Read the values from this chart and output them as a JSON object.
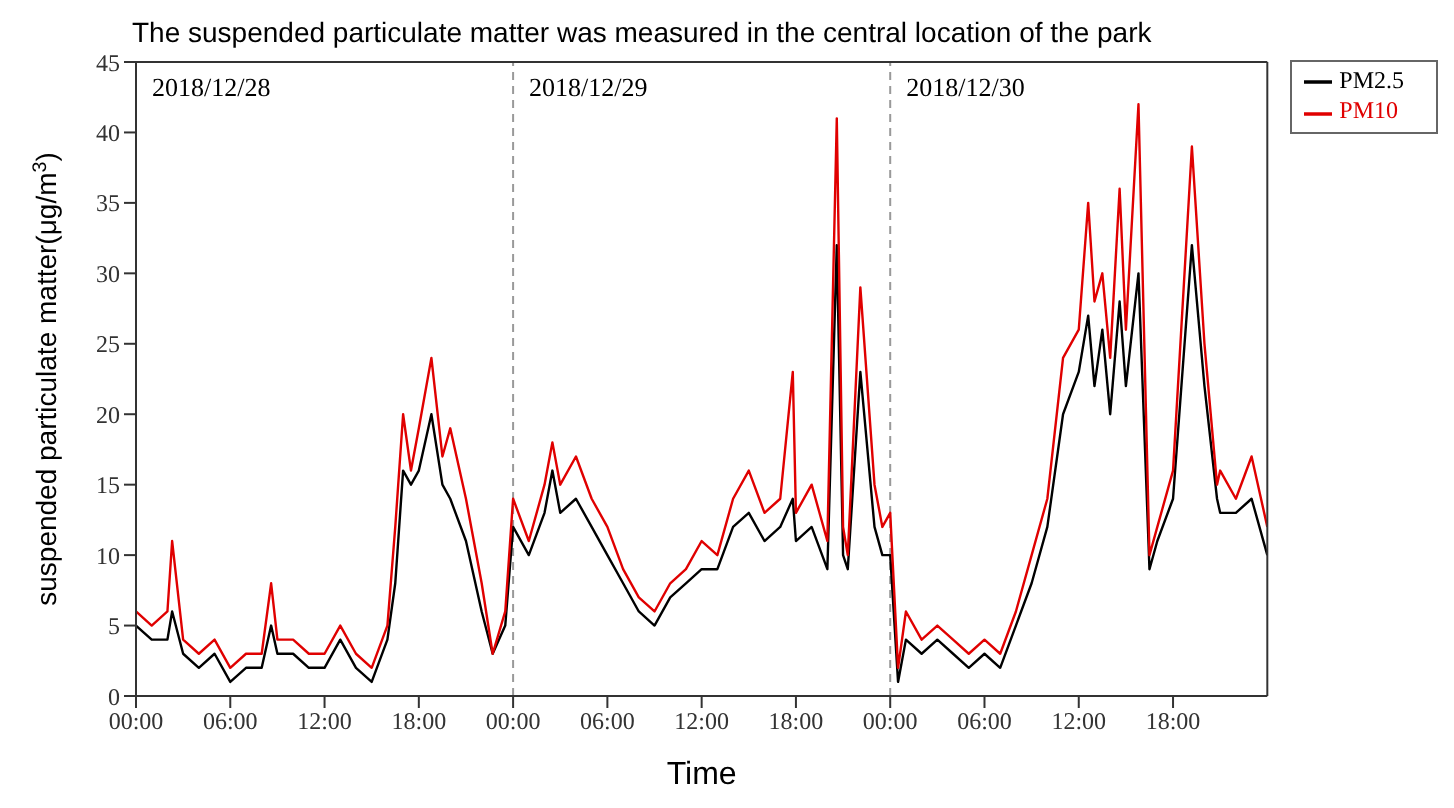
{
  "chart_data": {
    "type": "line",
    "title": "The suspended particulate matter was measured in the central location of the park",
    "xlabel": "Time",
    "ylabel": "suspended particulate matter(μg/m$^{3}$)",
    "x": [
      "2018-12-28T00:00",
      "2018-12-28T01:00",
      "2018-12-28T02:00",
      "2018-12-28T02:18",
      "2018-12-28T03:00",
      "2018-12-28T04:00",
      "2018-12-28T05:00",
      "2018-12-28T06:00",
      "2018-12-28T07:00",
      "2018-12-28T08:00",
      "2018-12-28T08:36",
      "2018-12-28T09:00",
      "2018-12-28T10:00",
      "2018-12-28T11:00",
      "2018-12-28T12:00",
      "2018-12-28T13:00",
      "2018-12-28T14:00",
      "2018-12-28T15:00",
      "2018-12-28T16:00",
      "2018-12-28T16:30",
      "2018-12-28T17:00",
      "2018-12-28T17:30",
      "2018-12-28T18:00",
      "2018-12-28T18:48",
      "2018-12-28T19:30",
      "2018-12-28T20:00",
      "2018-12-28T21:00",
      "2018-12-28T22:00",
      "2018-12-28T22:42",
      "2018-12-28T23:30",
      "2018-12-29T00:00",
      "2018-12-29T01:00",
      "2018-12-29T02:00",
      "2018-12-29T02:30",
      "2018-12-29T03:00",
      "2018-12-29T04:00",
      "2018-12-29T05:00",
      "2018-12-29T06:00",
      "2018-12-29T07:00",
      "2018-12-29T08:00",
      "2018-12-29T09:00",
      "2018-12-29T10:00",
      "2018-12-29T11:00",
      "2018-12-29T12:00",
      "2018-12-29T13:00",
      "2018-12-29T14:00",
      "2018-12-29T15:00",
      "2018-12-29T16:00",
      "2018-12-29T17:00",
      "2018-12-29T17:48",
      "2018-12-29T18:00",
      "2018-12-29T19:00",
      "2018-12-29T20:00",
      "2018-12-29T20:36",
      "2018-12-29T21:00",
      "2018-12-29T21:18",
      "2018-12-29T22:06",
      "2018-12-29T23:00",
      "2018-12-29T23:30",
      "2018-12-30T00:00",
      "2018-12-30T00:30",
      "2018-12-30T01:00",
      "2018-12-30T02:00",
      "2018-12-30T03:00",
      "2018-12-30T04:00",
      "2018-12-30T05:00",
      "2018-12-30T06:00",
      "2018-12-30T07:00",
      "2018-12-30T08:00",
      "2018-12-30T09:00",
      "2018-12-30T10:00",
      "2018-12-30T11:00",
      "2018-12-30T12:00",
      "2018-12-30T12:36",
      "2018-12-30T13:00",
      "2018-12-30T13:30",
      "2018-12-30T14:00",
      "2018-12-30T14:36",
      "2018-12-30T15:00",
      "2018-12-30T15:48",
      "2018-12-30T16:30",
      "2018-12-30T17:00",
      "2018-12-30T18:00",
      "2018-12-30T19:12",
      "2018-12-30T20:00",
      "2018-12-30T20:48",
      "2018-12-30T21:00",
      "2018-12-30T22:00",
      "2018-12-30T23:00",
      "2018-12-31T00:00"
    ],
    "series": [
      {
        "name": "PM2.5",
        "color": "#000000",
        "values": [
          5,
          4,
          4,
          6,
          3,
          2,
          3,
          1,
          2,
          2,
          5,
          3,
          3,
          2,
          2,
          4,
          2,
          1,
          4,
          8,
          16,
          15,
          16,
          20,
          15,
          14,
          11,
          6,
          3,
          5,
          12,
          10,
          13,
          16,
          13,
          14,
          12,
          10,
          8,
          6,
          5,
          7,
          8,
          9,
          9,
          12,
          13,
          11,
          12,
          14,
          11,
          12,
          9,
          32,
          10,
          9,
          23,
          12,
          10,
          10,
          1,
          4,
          3,
          4,
          3,
          2,
          3,
          2,
          5,
          8,
          12,
          20,
          23,
          27,
          22,
          26,
          20,
          28,
          22,
          30,
          9,
          11,
          14,
          32,
          22,
          14,
          13,
          13,
          14,
          10
        ]
      },
      {
        "name": "PM10",
        "color": "#e00000",
        "values": [
          6,
          5,
          6,
          11,
          4,
          3,
          4,
          2,
          3,
          3,
          8,
          4,
          4,
          3,
          3,
          5,
          3,
          2,
          5,
          12,
          20,
          16,
          19,
          24,
          17,
          19,
          14,
          8,
          3,
          6,
          14,
          11,
          15,
          18,
          15,
          17,
          14,
          12,
          9,
          7,
          6,
          8,
          9,
          11,
          10,
          14,
          16,
          13,
          14,
          23,
          13,
          15,
          11,
          41,
          12,
          10,
          29,
          15,
          12,
          13,
          2,
          6,
          4,
          5,
          4,
          3,
          4,
          3,
          6,
          10,
          14,
          24,
          26,
          35,
          28,
          30,
          24,
          36,
          26,
          42,
          10,
          12,
          16,
          39,
          25,
          15,
          16,
          14,
          17,
          12
        ]
      }
    ],
    "xlim": [
      "2018-12-28T00:00",
      "2018-12-31T00:00"
    ],
    "xticks": [
      {
        "value": "2018-12-28T00:00",
        "label": "00:00"
      },
      {
        "value": "2018-12-28T06:00",
        "label": "06:00"
      },
      {
        "value": "2018-12-28T12:00",
        "label": "12:00"
      },
      {
        "value": "2018-12-28T18:00",
        "label": "18:00"
      },
      {
        "value": "2018-12-29T00:00",
        "label": "00:00"
      },
      {
        "value": "2018-12-29T06:00",
        "label": "06:00"
      },
      {
        "value": "2018-12-29T12:00",
        "label": "12:00"
      },
      {
        "value": "2018-12-29T18:00",
        "label": "18:00"
      },
      {
        "value": "2018-12-30T00:00",
        "label": "00:00"
      },
      {
        "value": "2018-12-30T06:00",
        "label": "06:00"
      },
      {
        "value": "2018-12-30T12:00",
        "label": "12:00"
      },
      {
        "value": "2018-12-30T18:00",
        "label": "18:00"
      }
    ],
    "ylim": [
      0,
      45
    ],
    "yticks": [
      0,
      5,
      10,
      15,
      20,
      25,
      30,
      35,
      40,
      45
    ],
    "ref_lines": [
      {
        "axis": "x",
        "value": "2018-12-29T00:00",
        "color": "#999999",
        "line_style": "dashed"
      },
      {
        "axis": "x",
        "value": "2018-12-30T00:00",
        "color": "#999999",
        "line_style": "dashed"
      }
    ],
    "annotations": [
      "2018/12/28",
      "2018/12/29",
      "2018/12/30"
    ],
    "grid": false,
    "legend": "top right",
    "marker": "none",
    "line_style": "solid"
  }
}
